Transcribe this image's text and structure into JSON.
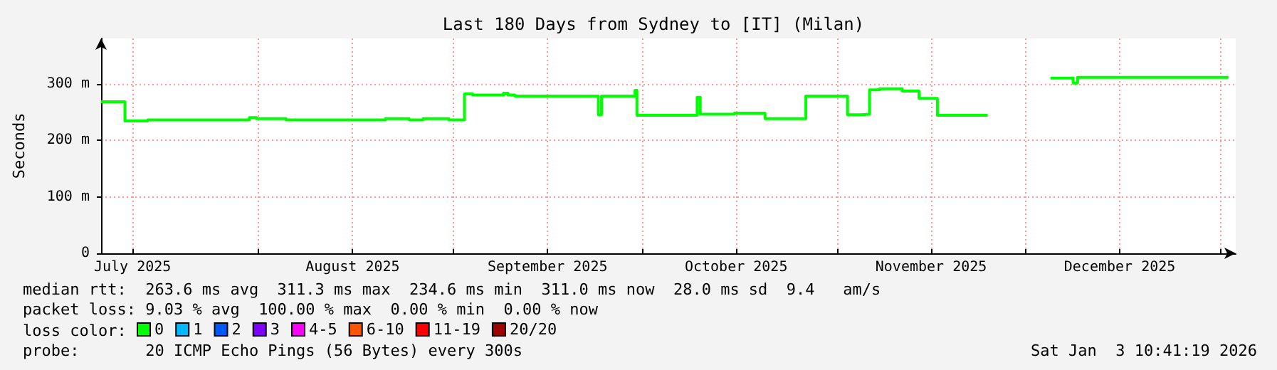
{
  "chart_data": {
    "type": "step",
    "title": "Last 180 Days from Sydney to [IT] (Milan)",
    "ylabel": "Seconds",
    "xlim": [
      "2025-07-07T00:00",
      "2026-01-03T10:41"
    ],
    "xticks": [
      {
        "value": "2025-07-12",
        "label": "July 2025"
      },
      {
        "value": "2025-08-01",
        "label": null
      },
      {
        "value": "2025-08-16",
        "label": "August 2025"
      },
      {
        "value": "2025-09-01",
        "label": null
      },
      {
        "value": "2025-09-16",
        "label": "September 2025"
      },
      {
        "value": "2025-10-01",
        "label": null
      },
      {
        "value": "2025-10-16",
        "label": "October 2025"
      },
      {
        "value": "2025-11-01",
        "label": null
      },
      {
        "value": "2025-11-16",
        "label": "November 2025"
      },
      {
        "value": "2025-12-01",
        "label": null
      },
      {
        "value": "2025-12-16",
        "label": "December 2025"
      },
      {
        "value": "2026-01-01",
        "label": null
      }
    ],
    "ylim": [
      0,
      380
    ],
    "yticks": [
      0,
      {
        "value": 100,
        "label": "100 m"
      },
      {
        "value": 200,
        "label": "200 m"
      },
      {
        "value": 300,
        "label": "300 m"
      }
    ],
    "grid": true,
    "legend": "bottom left",
    "legend_title": "loss color:",
    "marker": "none",
    "line_style": "solid",
    "series": [
      {
        "name": "0",
        "color": "#00ff00",
        "x": [
          "2025-07-07T00:00",
          "2025-07-10T19:00",
          "2025-07-14T10:00",
          "2025-07-30T14:00",
          "2025-07-31T17:00",
          "2025-08-05T10:00",
          "2025-08-21T05:00",
          "2025-08-25T00:00",
          "2025-08-27T05:00",
          "2025-08-31T07:00",
          "2025-09-02T19:00",
          "2025-09-04T02:00",
          "2025-09-09T00:00",
          "2025-09-09T17:00",
          "2025-09-10T19:00",
          "2025-09-24T02:00",
          "2025-09-24T14:00",
          "2025-09-29T22:00",
          "2025-09-30T05:00",
          "2025-10-09T19:00",
          "2025-10-10T07:00",
          "2025-10-15T17:00",
          "2025-10-20T14:00",
          "2025-10-27T02:00",
          "2025-11-02T17:00",
          "2025-11-04T17:00",
          "2025-11-06T05:00",
          "2025-11-07T19:00",
          "2025-11-11T10:00",
          "2025-11-14T02:00",
          "2025-11-17T00:00",
          "2025-11-20T00:00",
          "2025-11-25T00:00",
          "2025-12-05T00:00",
          "2025-12-08T10:00",
          "2025-12-08T14:00",
          "2025-12-09T07:00",
          "2026-01-02T07:00"
        ],
        "values": [
          268,
          234,
          236,
          240,
          238,
          236,
          238,
          236,
          238,
          236,
          282,
          280,
          283,
          280,
          278,
          245,
          278,
          288,
          244,
          276,
          246,
          248,
          238,
          278,
          245,
          246,
          289,
          291,
          287,
          274,
          244,
          244,
          null,
          310,
          310,
          301,
          311,
          311
        ]
      },
      {
        "name": "1",
        "color": "#00b8ff"
      },
      {
        "name": "2",
        "color": "#0059ff"
      },
      {
        "name": "3",
        "color": "#7e00ff"
      },
      {
        "name": "4-5",
        "color": "#ff00ff"
      },
      {
        "name": "6-10",
        "color": "#ff5500"
      },
      {
        "name": "11-19",
        "color": "#ff0000"
      },
      {
        "name": "20/20",
        "color": "#a10000"
      }
    ],
    "annotations": [
      "median rtt:  263.6 ms avg  311.3 ms max  234.6 ms min  311.0 ms now  28.0 ms sd  9.4   am/s",
      "packet loss: 9.03 % avg  100.00 % max  0.00 % min  0.00 % now",
      "probe:       20 ICMP Echo Pings (56 Bytes) every 300s",
      "Sat Jan  3 10:41:19 2026"
    ]
  }
}
